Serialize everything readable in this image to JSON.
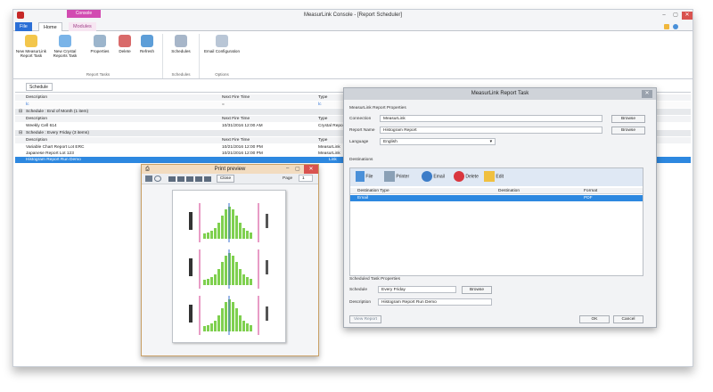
{
  "window": {
    "title": "MeasurLink Console - [Report Scheduler]",
    "context_tab": "Console"
  },
  "tabs": [
    {
      "label": "File"
    },
    {
      "label": "Home"
    },
    {
      "label": "Modules"
    }
  ],
  "ribbon": {
    "report_tasks": {
      "new_ml": "New MeasurLink Report Task",
      "new_cr": "New Crystal Reports Task",
      "properties": "Properties",
      "delete": "Delete",
      "refresh": "Refresh",
      "group_label": "Report Tasks"
    },
    "schedules": {
      "label": "Schedules",
      "group_label": "Schedules"
    },
    "options": {
      "email_config": "Email Configuration",
      "group_label": "Options"
    }
  },
  "doc_tab": "Schedule",
  "grid": {
    "col_description": "Description",
    "col_next": "Next Fire Time",
    "col_type": "Type",
    "group2": "Schedule : End of Month (1 item)",
    "group3": "Schedule : Every Friday (3 items)",
    "rows_eom": [
      {
        "desc": "Weekly Cell 614",
        "next": "10/31/2016 12:00 AM",
        "type": "Crystal Reports"
      }
    ],
    "rows_fri": [
      {
        "desc": "Variable Chart Report Lot ERC",
        "next": "10/21/2016 12:00 PM",
        "type": "MeasurLink"
      },
      {
        "desc": "Japanese Report Lot 123",
        "next": "10/21/2016 12:00 PM",
        "type": "MeasurLink"
      },
      {
        "desc": "Histogram Report Run Demo",
        "next": "",
        "type": "Link"
      }
    ]
  },
  "preview": {
    "title": "Print preview",
    "close": "Close",
    "page_label": "Page",
    "page_value": "1"
  },
  "dialog": {
    "title": "MeasurLink Report Task",
    "section_props": "MeasurLink Report Properties",
    "connection_label": "Connection",
    "connection_value": "MeasurLink",
    "report_label": "Report Name",
    "report_value": "Histogram Report",
    "language_label": "Language",
    "language_value": "English",
    "browse": "Browse",
    "destinations": "Destinations",
    "dest_tools": {
      "file": "File",
      "printer": "Printer",
      "email": "Email",
      "delete": "Delete",
      "edit": "Edit"
    },
    "dest_cols": {
      "type": "Destination Type",
      "destination": "Destination",
      "format": "Format"
    },
    "dest_row": {
      "type": "Email",
      "destination": "",
      "format": "PDF"
    },
    "section_sched": "Scheduled Task Properties",
    "schedule_label": "Schedule",
    "schedule_value": "Every Friday",
    "desc_label": "Description",
    "desc_value": "Histogram Report Run Demo",
    "view_report": "View Report",
    "ok": "OK",
    "cancel": "Cancel"
  },
  "colors": {
    "accent": "#2b6fd6",
    "context": "#d24bb1",
    "selection": "#2d88e0"
  }
}
